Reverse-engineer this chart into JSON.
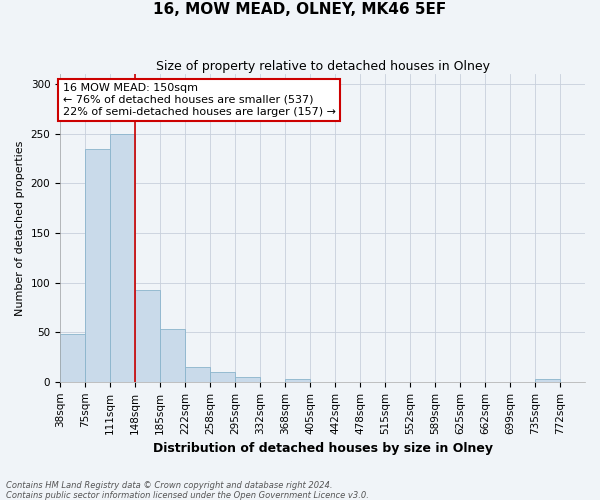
{
  "title": "16, MOW MEAD, OLNEY, MK46 5EF",
  "subtitle": "Size of property relative to detached houses in Olney",
  "xlabel": "Distribution of detached houses by size in Olney",
  "ylabel": "Number of detached properties",
  "bar_labels": [
    "38sqm",
    "75sqm",
    "111sqm",
    "148sqm",
    "185sqm",
    "222sqm",
    "258sqm",
    "295sqm",
    "332sqm",
    "368sqm",
    "405sqm",
    "442sqm",
    "478sqm",
    "515sqm",
    "552sqm",
    "589sqm",
    "625sqm",
    "662sqm",
    "699sqm",
    "735sqm",
    "772sqm"
  ],
  "bar_values": [
    48,
    235,
    250,
    93,
    53,
    15,
    10,
    5,
    0,
    3,
    0,
    0,
    0,
    0,
    0,
    0,
    0,
    0,
    0,
    3,
    0
  ],
  "bar_color": "#c9daea",
  "bar_edge_color": "#8ab4cc",
  "vline_x_bar_index": 3,
  "vline_color": "#cc0000",
  "annotation_box_text": "16 MOW MEAD: 150sqm\n← 76% of detached houses are smaller (537)\n22% of semi-detached houses are larger (157) →",
  "annotation_box_color": "#ffffff",
  "annotation_box_edge_color": "#cc0000",
  "ylim": [
    0,
    310
  ],
  "yticks": [
    0,
    50,
    100,
    150,
    200,
    250,
    300
  ],
  "grid_color": "#c8d0dc",
  "footer_line1": "Contains HM Land Registry data © Crown copyright and database right 2024.",
  "footer_line2": "Contains public sector information licensed under the Open Government Licence v3.0.",
  "background_color": "#f0f4f8",
  "title_fontsize": 11,
  "subtitle_fontsize": 9,
  "xlabel_fontsize": 9,
  "ylabel_fontsize": 8,
  "tick_fontsize": 7.5,
  "annot_fontsize": 8
}
